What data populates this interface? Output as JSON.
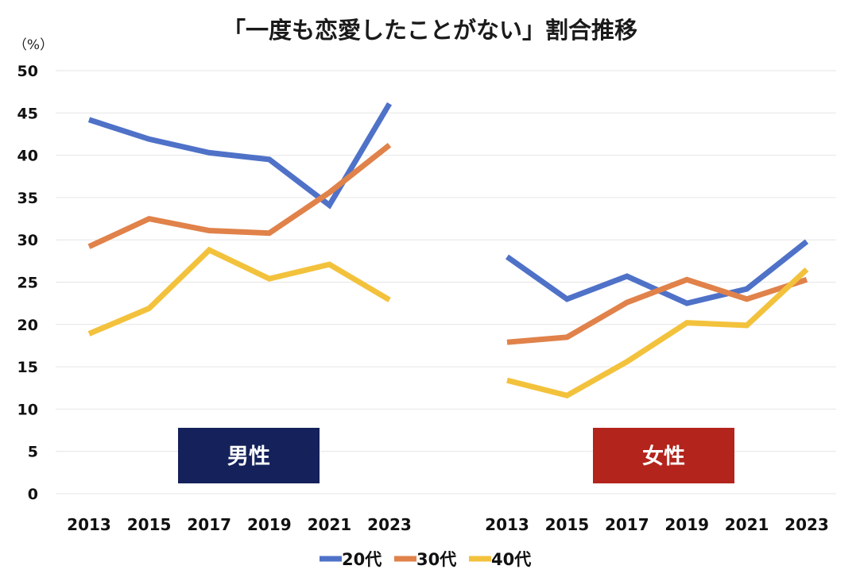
{
  "chart_data": {
    "type": "line",
    "title": "「一度も恋愛したことがない」割合推移",
    "ylabel": "（%）",
    "ylim": [
      0,
      50
    ],
    "yticks": [
      0,
      5,
      10,
      15,
      20,
      25,
      30,
      35,
      40,
      45,
      50
    ],
    "grid": true,
    "legend_position": "bottom",
    "panels": [
      {
        "label": "男性",
        "label_color": "#14215a",
        "x": [
          2013,
          2015,
          2017,
          2019,
          2021,
          2023
        ],
        "series": [
          {
            "name": "20代",
            "color": "#4f72c8",
            "values": [
              44.2,
              41.9,
              40.3,
              39.5,
              34.1,
              46.1
            ]
          },
          {
            "name": "30代",
            "color": "#e0824a",
            "values": [
              29.2,
              32.5,
              31.1,
              30.8,
              35.6,
              41.2
            ]
          },
          {
            "name": "40代",
            "color": "#f3c23c",
            "values": [
              18.9,
              21.9,
              28.8,
              25.4,
              27.1,
              22.9
            ]
          }
        ]
      },
      {
        "label": "女性",
        "label_color": "#b3241c",
        "x": [
          2013,
          2015,
          2017,
          2019,
          2021,
          2023
        ],
        "series": [
          {
            "name": "20代",
            "color": "#4f72c8",
            "values": [
              28.0,
              23.0,
              25.7,
              22.5,
              24.2,
              29.8
            ]
          },
          {
            "name": "30代",
            "color": "#e0824a",
            "values": [
              17.9,
              18.5,
              22.6,
              25.3,
              23.0,
              25.3
            ]
          },
          {
            "name": "40代",
            "color": "#f3c23c",
            "values": [
              13.4,
              11.6,
              15.6,
              20.2,
              19.9,
              26.5
            ]
          }
        ]
      }
    ],
    "legend": [
      {
        "name": "20代",
        "color": "#4f72c8"
      },
      {
        "name": "30代",
        "color": "#e0824a"
      },
      {
        "name": "40代",
        "color": "#f3c23c"
      }
    ]
  }
}
